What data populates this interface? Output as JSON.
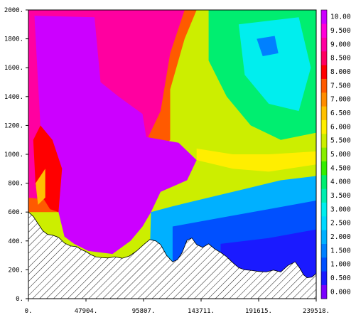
{
  "chart_data": {
    "type": "heatmap",
    "title": "",
    "xlabel": "",
    "ylabel": "",
    "xlim": [
      0,
      239518
    ],
    "ylim": [
      0,
      2000
    ],
    "x_ticks": [
      {
        "value": 0,
        "label": "0."
      },
      {
        "value": 47904,
        "label": "47904."
      },
      {
        "value": 95807,
        "label": "95807."
      },
      {
        "value": 143711,
        "label": "143711."
      },
      {
        "value": 191615,
        "label": "191615."
      },
      {
        "value": 239518,
        "label": "239518."
      }
    ],
    "y_ticks": [
      {
        "value": 0,
        "label": "0."
      },
      {
        "value": 200,
        "label": "200."
      },
      {
        "value": 400,
        "label": "400."
      },
      {
        "value": 600,
        "label": "600."
      },
      {
        "value": 800,
        "label": "800."
      },
      {
        "value": 1000,
        "label": "1000."
      },
      {
        "value": 1200,
        "label": "1200."
      },
      {
        "value": 1400,
        "label": "1400."
      },
      {
        "value": 1600,
        "label": "1600."
      },
      {
        "value": 1800,
        "label": "1800."
      },
      {
        "value": 2000,
        "label": "2000."
      }
    ],
    "colorbar": {
      "min": 0.0,
      "max": 10.5,
      "step": 0.5,
      "labels": [
        "0.000",
        "0.500",
        "1.000",
        "1.500",
        "2.000",
        "2.500",
        "3.000",
        "3.500",
        "4.000",
        "4.500",
        "5.000",
        "5.500",
        "6.000",
        "6.500",
        "7.000",
        "7.500",
        "8.000",
        "8.500",
        "9.000",
        "9.500",
        "10.00"
      ],
      "colors": [
        "#7a00ff",
        "#1a1aff",
        "#0050ff",
        "#0080ff",
        "#00b0ff",
        "#00d8ff",
        "#00eeee",
        "#00eeb0",
        "#00ee70",
        "#33ee00",
        "#88ee00",
        "#ccee00",
        "#ffee00",
        "#ffc000",
        "#ff8c00",
        "#ff5a00",
        "#ff0000",
        "#ff0060",
        "#ff00a0",
        "#ff00d8",
        "#cc00ff"
      ]
    },
    "terrain": [
      [
        0,
        600
      ],
      [
        4000,
        570
      ],
      [
        8000,
        520
      ],
      [
        12000,
        470
      ],
      [
        16000,
        445
      ],
      [
        20000,
        440
      ],
      [
        25000,
        425
      ],
      [
        30000,
        385
      ],
      [
        35000,
        365
      ],
      [
        40000,
        360
      ],
      [
        44000,
        340
      ],
      [
        48000,
        325
      ],
      [
        52000,
        305
      ],
      [
        56000,
        290
      ],
      [
        60000,
        285
      ],
      [
        66000,
        282
      ],
      [
        72000,
        290
      ],
      [
        78000,
        280
      ],
      [
        84000,
        295
      ],
      [
        90000,
        330
      ],
      [
        96000,
        375
      ],
      [
        101000,
        410
      ],
      [
        106000,
        400
      ],
      [
        110000,
        375
      ],
      [
        115000,
        300
      ],
      [
        120000,
        255
      ],
      [
        124000,
        270
      ],
      [
        128000,
        320
      ],
      [
        132000,
        405
      ],
      [
        136000,
        420
      ],
      [
        140000,
        375
      ],
      [
        145000,
        355
      ],
      [
        150000,
        380
      ],
      [
        155000,
        345
      ],
      [
        160000,
        320
      ],
      [
        165000,
        290
      ],
      [
        170000,
        250
      ],
      [
        175000,
        215
      ],
      [
        180000,
        200
      ],
      [
        186000,
        195
      ],
      [
        192000,
        188
      ],
      [
        198000,
        185
      ],
      [
        204000,
        198
      ],
      [
        210000,
        185
      ],
      [
        216000,
        230
      ],
      [
        222000,
        255
      ],
      [
        226000,
        210
      ],
      [
        229000,
        165
      ],
      [
        232000,
        145
      ],
      [
        236000,
        150
      ],
      [
        239518,
        175
      ]
    ],
    "field_regions": [
      {
        "value": 5.5,
        "points": [
          [
            0,
            2000
          ],
          [
            239518,
            2000
          ],
          [
            239518,
            0
          ],
          [
            0,
            0
          ]
        ]
      },
      {
        "value": 4.0,
        "points": [
          [
            150000,
            2000
          ],
          [
            239518,
            2000
          ],
          [
            239518,
            1150
          ],
          [
            210000,
            1100
          ],
          [
            185000,
            1200
          ],
          [
            165000,
            1400
          ],
          [
            150000,
            1650
          ]
        ]
      },
      {
        "value": 3.0,
        "points": [
          [
            175000,
            1900
          ],
          [
            225000,
            1950
          ],
          [
            235000,
            1600
          ],
          [
            225000,
            1300
          ],
          [
            200000,
            1350
          ],
          [
            180000,
            1550
          ]
        ]
      },
      {
        "value": 1.5,
        "points": [
          [
            190000,
            1800
          ],
          [
            205000,
            1820
          ],
          [
            208000,
            1700
          ],
          [
            195000,
            1680
          ]
        ]
      },
      {
        "value": 7.5,
        "points": [
          [
            0,
            2000
          ],
          [
            140000,
            2000
          ],
          [
            130000,
            1800
          ],
          [
            118000,
            1450
          ],
          [
            118000,
            1100
          ],
          [
            95000,
            900
          ],
          [
            50000,
            600
          ],
          [
            0,
            600
          ]
        ]
      },
      {
        "value": 9.0,
        "points": [
          [
            0,
            2000
          ],
          [
            130000,
            2000
          ],
          [
            118000,
            1700
          ],
          [
            110000,
            1300
          ],
          [
            90000,
            950
          ],
          [
            50000,
            650
          ],
          [
            0,
            700
          ]
        ]
      },
      {
        "value": 10.0,
        "points": [
          [
            5000,
            1960
          ],
          [
            55000,
            1950
          ],
          [
            60000,
            1500
          ],
          [
            75000,
            1400
          ],
          [
            95000,
            1280
          ],
          [
            98000,
            1120
          ],
          [
            125000,
            1080
          ],
          [
            140000,
            960
          ],
          [
            132000,
            820
          ],
          [
            110000,
            740
          ],
          [
            102000,
            600
          ],
          [
            95000,
            500
          ],
          [
            85000,
            400
          ],
          [
            70000,
            310
          ],
          [
            50000,
            330
          ],
          [
            38000,
            380
          ],
          [
            30000,
            430
          ],
          [
            25000,
            600
          ],
          [
            28000,
            900
          ],
          [
            20000,
            1100
          ],
          [
            10000,
            1200
          ],
          [
            8000,
            1500
          ]
        ]
      },
      {
        "value": 2.0,
        "points": [
          [
            102000,
            600
          ],
          [
            120000,
            640
          ],
          [
            150000,
            700
          ],
          [
            180000,
            760
          ],
          [
            210000,
            820
          ],
          [
            239518,
            850
          ],
          [
            239518,
            0
          ],
          [
            100000,
            0
          ]
        ]
      },
      {
        "value": 1.0,
        "points": [
          [
            120000,
            500
          ],
          [
            160000,
            560
          ],
          [
            200000,
            620
          ],
          [
            239518,
            680
          ],
          [
            239518,
            0
          ],
          [
            120000,
            0
          ]
        ]
      },
      {
        "value": 0.5,
        "points": [
          [
            160000,
            380
          ],
          [
            200000,
            420
          ],
          [
            239518,
            480
          ],
          [
            239518,
            0
          ],
          [
            160000,
            0
          ]
        ]
      },
      {
        "value": 6.0,
        "points": [
          [
            140000,
            960
          ],
          [
            170000,
            900
          ],
          [
            200000,
            880
          ],
          [
            239518,
            930
          ],
          [
            239518,
            1020
          ],
          [
            200000,
            1000
          ],
          [
            170000,
            1000
          ],
          [
            140000,
            1040
          ]
        ]
      },
      {
        "value": 8.0,
        "points": [
          [
            10000,
            1200
          ],
          [
            20000,
            1100
          ],
          [
            28000,
            900
          ],
          [
            25000,
            600
          ],
          [
            18000,
            620
          ],
          [
            6000,
            780
          ],
          [
            4000,
            1100
          ]
        ]
      },
      {
        "value": 6.5,
        "points": [
          [
            6000,
            800
          ],
          [
            14000,
            900
          ],
          [
            14000,
            700
          ],
          [
            8000,
            650
          ]
        ]
      }
    ]
  }
}
